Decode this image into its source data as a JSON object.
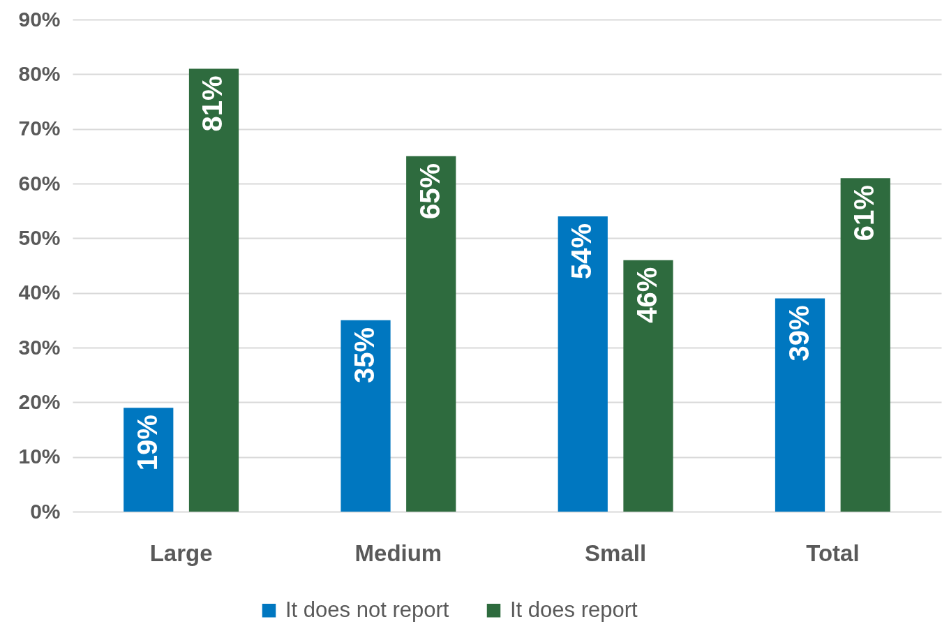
{
  "chart_data": {
    "type": "bar",
    "categories": [
      "Large",
      "Medium",
      "Small",
      "Total"
    ],
    "series": [
      {
        "name": "It does not report",
        "color": "#0077c0",
        "values": [
          19,
          35,
          54,
          39
        ],
        "value_labels": [
          "19%",
          "35%",
          "54%",
          "39%"
        ]
      },
      {
        "name": "It does report",
        "color": "#2e6b3e",
        "values": [
          81,
          65,
          46,
          61
        ],
        "value_labels": [
          "81%",
          "65%",
          "46%",
          "61%"
        ]
      }
    ],
    "ylim": [
      0,
      90
    ],
    "yticks": [
      {
        "value": 0,
        "label": "0%"
      },
      {
        "value": 10,
        "label": "10%"
      },
      {
        "value": 20,
        "label": "20%"
      },
      {
        "value": 30,
        "label": "30%"
      },
      {
        "value": 40,
        "label": "40%"
      },
      {
        "value": 50,
        "label": "50%"
      },
      {
        "value": 60,
        "label": "60%"
      },
      {
        "value": 70,
        "label": "70%"
      },
      {
        "value": 80,
        "label": "80%"
      },
      {
        "value": 90,
        "label": "90%"
      }
    ],
    "grid": "y",
    "legend": "bottom"
  }
}
